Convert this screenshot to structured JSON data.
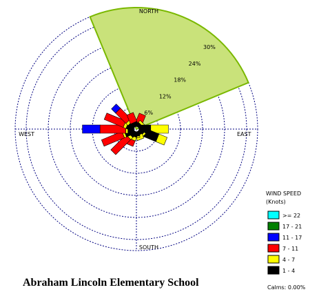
{
  "chart_data": {
    "type": "windrose",
    "title": "Abraham Lincoln Elementary School",
    "directions": {
      "north": "NORTH",
      "south": "SOUTH",
      "east": "EAST",
      "west": "WEST"
    },
    "ring_labels": [
      "6%",
      "12%",
      "18%",
      "24%",
      "30%"
    ],
    "ring_values": [
      6,
      12,
      18,
      24,
      30
    ],
    "legend": {
      "title_line1": "WIND SPEED",
      "title_line2": "(Knots)",
      "items": [
        {
          "label": ">= 22",
          "color": "#00ffff"
        },
        {
          "label": "17 - 21",
          "color": "#008000"
        },
        {
          "label": "11 - 17",
          "color": "#0000ff"
        },
        {
          "label": "7 - 11",
          "color": "#ff0000"
        },
        {
          "label": "4 - 7",
          "color": "#ffff00"
        },
        {
          "label": "1 - 4",
          "color": "#000000"
        }
      ]
    },
    "calms": "Calms: 0.00%",
    "highlight_sector": {
      "from_deg": -22.5,
      "to_deg": 67.5,
      "radius_pct": 33,
      "fill": "#c9e27a",
      "stroke": "#7ab800"
    },
    "petals": [
      {
        "dir_deg": 0,
        "halfwidth": 5,
        "segments": [
          1.0,
          0.6
        ]
      },
      {
        "dir_deg": 22.5,
        "halfwidth": 5,
        "segments": [
          0.9,
          0,
          2.7
        ]
      },
      {
        "dir_deg": 45,
        "halfwidth": 5,
        "segments": [
          1.0,
          0.7
        ]
      },
      {
        "dir_deg": 67.5,
        "halfwidth": 5,
        "segments": [
          0.8
        ]
      },
      {
        "dir_deg": 90,
        "halfwidth": 6,
        "segments": [
          3.2,
          4.8
        ]
      },
      {
        "dir_deg": 112.5,
        "halfwidth": 6,
        "segments": [
          5.5,
          2.4
        ]
      },
      {
        "dir_deg": 135,
        "halfwidth": 5,
        "segments": [
          1.4,
          0.6
        ]
      },
      {
        "dir_deg": 157.5,
        "halfwidth": 5,
        "segments": [
          1.0,
          1.3
        ]
      },
      {
        "dir_deg": 180,
        "halfwidth": 5,
        "segments": [
          1.2,
          0.4
        ]
      },
      {
        "dir_deg": 202.5,
        "halfwidth": 5,
        "segments": [
          1.4,
          1.0,
          1.6
        ]
      },
      {
        "dir_deg": 225,
        "halfwidth": 5,
        "segments": [
          1.6,
          0.8,
          5.8
        ]
      },
      {
        "dir_deg": 247.5,
        "halfwidth": 5,
        "segments": [
          2.6,
          0.6,
          6.0
        ]
      },
      {
        "dir_deg": 270,
        "halfwidth": 6,
        "segments": [
          1.6,
          0.6,
          7.0,
          4.8
        ]
      },
      {
        "dir_deg": 292.5,
        "halfwidth": 5,
        "segments": [
          2.0,
          0.8,
          5.6
        ]
      },
      {
        "dir_deg": 315,
        "halfwidth": 5,
        "segments": [
          1.6,
          0.8,
          4.0,
          1.6
        ]
      },
      {
        "dir_deg": 337.5,
        "halfwidth": 5,
        "segments": [
          1.2,
          0,
          2.6
        ]
      }
    ],
    "segment_colors": [
      "#000000",
      "#ffff00",
      "#ff0000",
      "#0000ff",
      "#008000",
      "#00ffff"
    ]
  }
}
